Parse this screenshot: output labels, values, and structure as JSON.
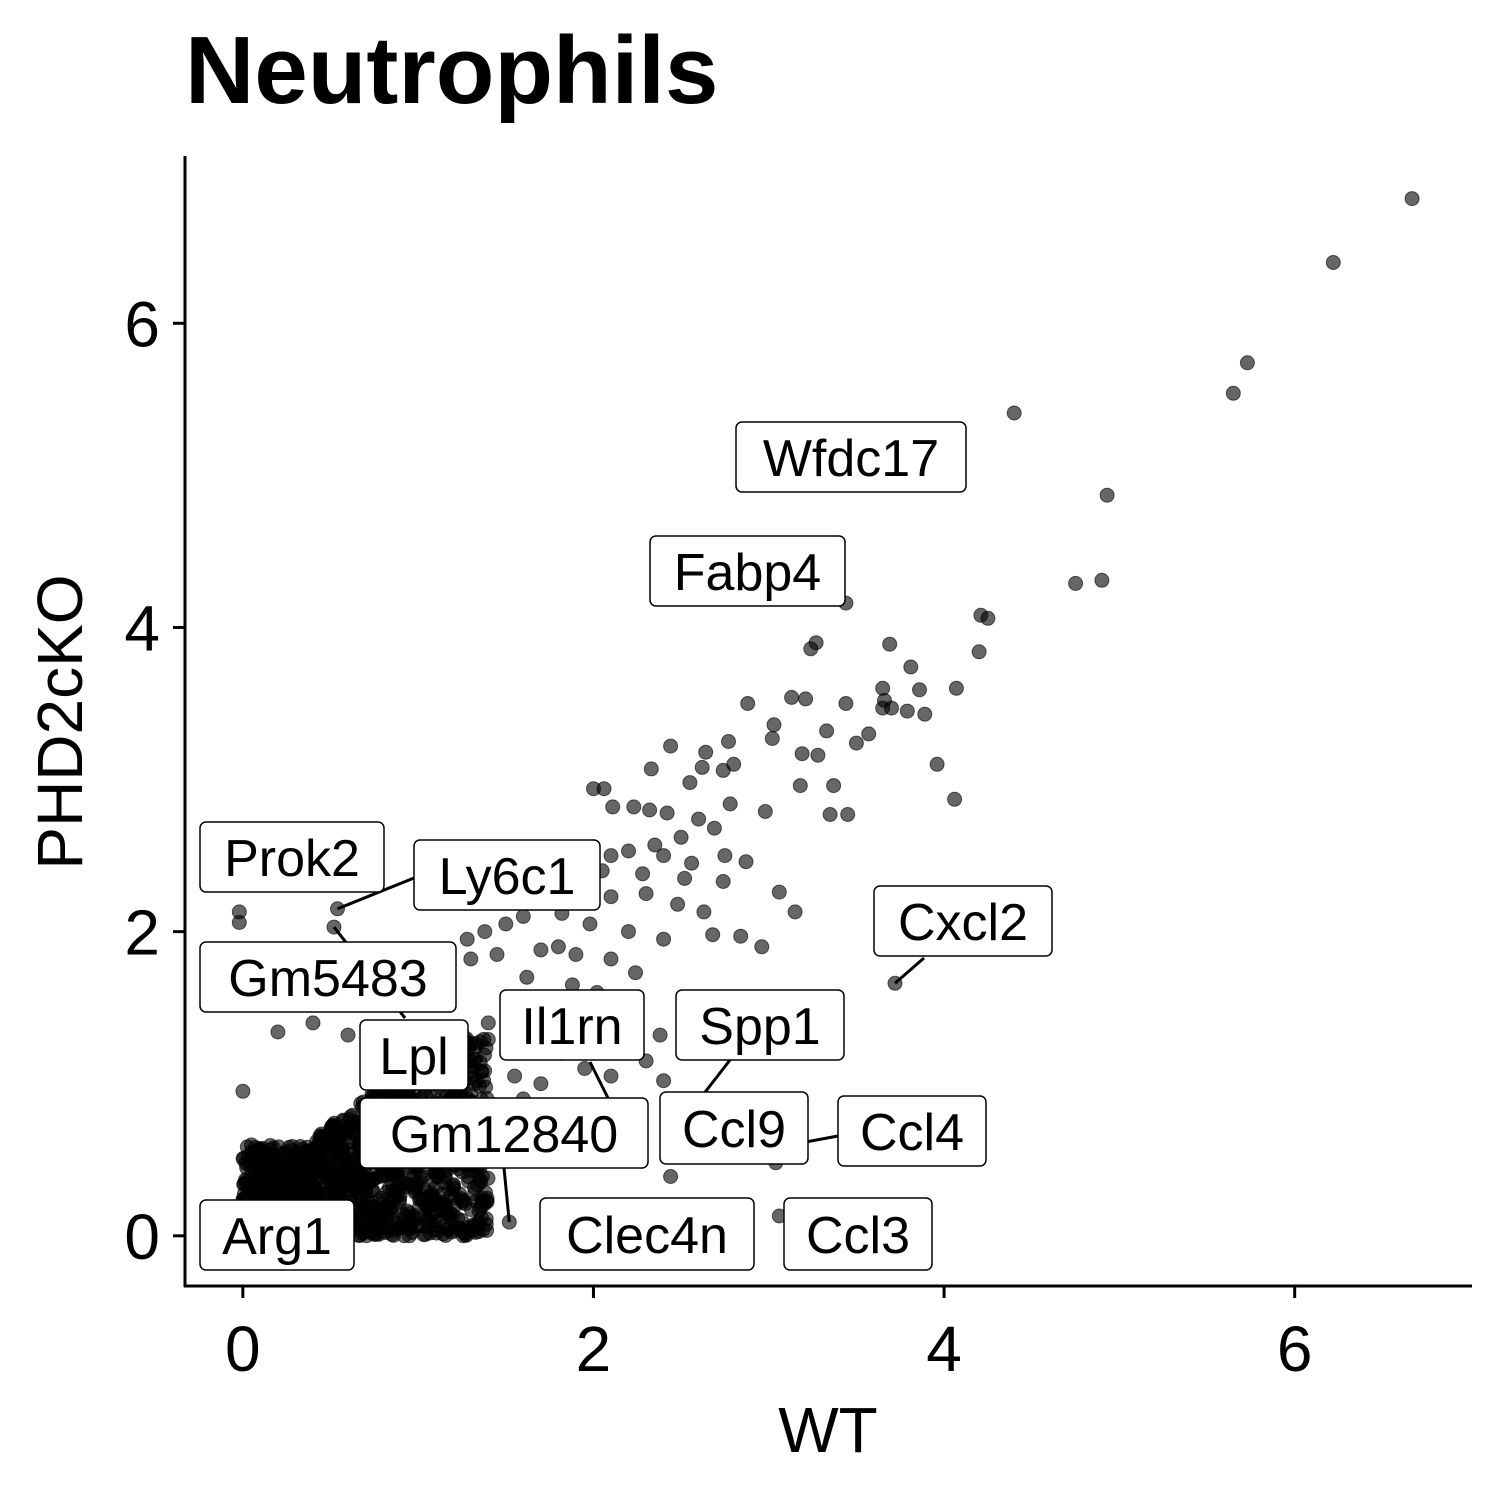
{
  "chart_data": {
    "type": "scatter",
    "title": "Neutrophils",
    "xlabel": "WT",
    "ylabel": "PHD2cKO",
    "xlim": [
      -0.33,
      7.0
    ],
    "ylim": [
      -0.33,
      7.1
    ],
    "xticks": [
      0,
      2,
      4,
      6
    ],
    "yticks": [
      0,
      2,
      4,
      6
    ],
    "xtick_labels": [
      "0",
      "2",
      "4",
      "6"
    ],
    "ytick_labels": [
      "0",
      "2",
      "4",
      "6"
    ],
    "grid": false,
    "point_color": "#000000",
    "point_opacity": 0.6,
    "dense_cluster": {
      "x_range": [
        0.0,
        1.4
      ],
      "y_range": [
        0.0,
        1.3
      ]
    },
    "points": [
      {
        "x": 6.67,
        "y": 6.82
      },
      {
        "x": 6.22,
        "y": 6.4
      },
      {
        "x": 5.73,
        "y": 5.74
      },
      {
        "x": 5.65,
        "y": 5.54
      },
      {
        "x": 4.4,
        "y": 5.41
      },
      {
        "x": 4.93,
        "y": 4.87
      },
      {
        "x": 4.9,
        "y": 4.31
      },
      {
        "x": 4.75,
        "y": 4.29
      },
      {
        "x": 4.25,
        "y": 4.06
      },
      {
        "x": 4.21,
        "y": 4.08
      },
      {
        "x": 3.44,
        "y": 4.16
      },
      {
        "x": 3.69,
        "y": 3.89
      },
      {
        "x": 4.2,
        "y": 3.84
      },
      {
        "x": 3.27,
        "y": 3.9
      },
      {
        "x": 3.24,
        "y": 3.86
      },
      {
        "x": 3.81,
        "y": 3.74
      },
      {
        "x": 3.65,
        "y": 3.6
      },
      {
        "x": 3.86,
        "y": 3.59
      },
      {
        "x": 4.07,
        "y": 3.6
      },
      {
        "x": 3.66,
        "y": 3.52
      },
      {
        "x": 3.65,
        "y": 3.47
      },
      {
        "x": 3.44,
        "y": 3.5
      },
      {
        "x": 3.79,
        "y": 3.45
      },
      {
        "x": 3.89,
        "y": 3.43
      },
      {
        "x": 3.7,
        "y": 3.47
      },
      {
        "x": 3.13,
        "y": 3.54
      },
      {
        "x": 3.21,
        "y": 3.53
      },
      {
        "x": 2.88,
        "y": 3.5
      },
      {
        "x": 3.03,
        "y": 3.36
      },
      {
        "x": 3.02,
        "y": 3.27
      },
      {
        "x": 2.77,
        "y": 3.25
      },
      {
        "x": 3.33,
        "y": 3.32
      },
      {
        "x": 3.57,
        "y": 3.3
      },
      {
        "x": 3.5,
        "y": 3.24
      },
      {
        "x": 2.44,
        "y": 3.22
      },
      {
        "x": 2.64,
        "y": 3.18
      },
      {
        "x": 3.19,
        "y": 3.17
      },
      {
        "x": 3.28,
        "y": 3.16
      },
      {
        "x": 2.8,
        "y": 3.1
      },
      {
        "x": 2.74,
        "y": 3.06
      },
      {
        "x": 2.62,
        "y": 3.08
      },
      {
        "x": 2.55,
        "y": 2.98
      },
      {
        "x": 2.33,
        "y": 3.07
      },
      {
        "x": 3.37,
        "y": 2.96
      },
      {
        "x": 3.18,
        "y": 2.96
      },
      {
        "x": 2.0,
        "y": 2.94
      },
      {
        "x": 2.06,
        "y": 2.94
      },
      {
        "x": 2.32,
        "y": 2.8
      },
      {
        "x": 2.78,
        "y": 2.84
      },
      {
        "x": 2.98,
        "y": 2.79
      },
      {
        "x": 3.35,
        "y": 2.77
      },
      {
        "x": 3.45,
        "y": 2.77
      },
      {
        "x": 4.06,
        "y": 2.87
      },
      {
        "x": 3.96,
        "y": 3.1
      },
      {
        "x": 2.11,
        "y": 2.82
      },
      {
        "x": 2.23,
        "y": 2.82
      },
      {
        "x": 2.42,
        "y": 2.78
      },
      {
        "x": 2.6,
        "y": 2.74
      },
      {
        "x": 2.69,
        "y": 2.68
      },
      {
        "x": 2.5,
        "y": 2.62
      },
      {
        "x": 2.35,
        "y": 2.57
      },
      {
        "x": 2.2,
        "y": 2.53
      },
      {
        "x": 2.1,
        "y": 2.5
      },
      {
        "x": 2.4,
        "y": 2.5
      },
      {
        "x": 2.56,
        "y": 2.45
      },
      {
        "x": 2.75,
        "y": 2.5
      },
      {
        "x": 2.87,
        "y": 2.46
      },
      {
        "x": 2.52,
        "y": 2.35
      },
      {
        "x": 2.74,
        "y": 2.33
      },
      {
        "x": 2.28,
        "y": 2.38
      },
      {
        "x": 2.05,
        "y": 2.4
      },
      {
        "x": 1.95,
        "y": 2.33
      },
      {
        "x": 2.1,
        "y": 2.23
      },
      {
        "x": 2.3,
        "y": 2.25
      },
      {
        "x": 2.48,
        "y": 2.18
      },
      {
        "x": 2.63,
        "y": 2.13
      },
      {
        "x": 3.06,
        "y": 2.26
      },
      {
        "x": 3.15,
        "y": 2.13
      },
      {
        "x": 1.7,
        "y": 2.2
      },
      {
        "x": 1.82,
        "y": 2.12
      },
      {
        "x": 1.6,
        "y": 2.1
      },
      {
        "x": 1.5,
        "y": 2.05
      },
      {
        "x": 1.38,
        "y": 2.0
      },
      {
        "x": 1.98,
        "y": 2.05
      },
      {
        "x": 2.2,
        "y": 2.0
      },
      {
        "x": 2.4,
        "y": 1.95
      },
      {
        "x": 2.68,
        "y": 1.98
      },
      {
        "x": 2.84,
        "y": 1.97
      },
      {
        "x": 2.96,
        "y": 1.9
      },
      {
        "x": 1.7,
        "y": 1.88
      },
      {
        "x": 1.8,
        "y": 1.9
      },
      {
        "x": 1.9,
        "y": 1.85
      },
      {
        "x": 2.1,
        "y": 1.82
      },
      {
        "x": 1.45,
        "y": 1.85
      },
      {
        "x": 1.3,
        "y": 1.82
      },
      {
        "x": 1.28,
        "y": 1.95
      },
      {
        "x": 1.1,
        "y": 1.7
      },
      {
        "x": 1.62,
        "y": 1.7
      },
      {
        "x": 1.88,
        "y": 1.65
      },
      {
        "x": 2.02,
        "y": 1.6
      },
      {
        "x": 2.2,
        "y": 1.55
      },
      {
        "x": 1.55,
        "y": 1.55
      },
      {
        "x": 1.7,
        "y": 1.48
      },
      {
        "x": 1.9,
        "y": 1.45
      },
      {
        "x": 2.05,
        "y": 1.35
      },
      {
        "x": 2.22,
        "y": 1.38
      },
      {
        "x": 2.38,
        "y": 1.32
      },
      {
        "x": 2.52,
        "y": 1.42
      },
      {
        "x": 1.4,
        "y": 1.4
      },
      {
        "x": 1.52,
        "y": 1.3
      },
      {
        "x": 1.68,
        "y": 1.25
      },
      {
        "x": 1.82,
        "y": 1.2
      },
      {
        "x": 1.95,
        "y": 1.1
      },
      {
        "x": 2.1,
        "y": 1.05
      },
      {
        "x": 2.3,
        "y": 1.15
      },
      {
        "x": 2.4,
        "y": 1.02
      },
      {
        "x": 1.55,
        "y": 1.05
      },
      {
        "x": 1.7,
        "y": 1.0
      },
      {
        "x": 1.6,
        "y": 0.9
      },
      {
        "x": 1.8,
        "y": 0.85
      },
      {
        "x": 1.5,
        "y": 0.8
      },
      {
        "x": 1.42,
        "y": 0.7
      },
      {
        "x": 1.62,
        "y": 0.62
      },
      {
        "x": 1.3,
        "y": 0.6
      },
      {
        "x": 1.25,
        "y": 0.42
      },
      {
        "x": 1.5,
        "y": 0.52
      },
      {
        "x": 0.54,
        "y": 2.15
      },
      {
        "x": 0.52,
        "y": 2.03
      },
      {
        "x": -0.02,
        "y": 2.13
      },
      {
        "x": -0.02,
        "y": 2.06
      },
      {
        "x": 3.72,
        "y": 1.66
      },
      {
        "x": 2.12,
        "y": 0.82
      },
      {
        "x": 2.58,
        "y": 0.86
      },
      {
        "x": 3.18,
        "y": 0.61
      },
      {
        "x": 3.04,
        "y": 0.48
      },
      {
        "x": 3.06,
        "y": 0.13
      },
      {
        "x": 2.44,
        "y": 0.39
      },
      {
        "x": 1.52,
        "y": 0.09
      },
      {
        "x": 1.37,
        "y": 0.04
      },
      {
        "x": 1.25,
        "y": 0.03
      },
      {
        "x": 1.1,
        "y": 0.04
      },
      {
        "x": 0.95,
        "y": 0.0
      },
      {
        "x": 0.85,
        "y": 0.01
      },
      {
        "x": 0.75,
        "y": 0.02
      },
      {
        "x": 0.0,
        "y": 0.95
      },
      {
        "x": 0.05,
        "y": 0.55
      },
      {
        "x": 0.2,
        "y": 1.34
      },
      {
        "x": 0.4,
        "y": 1.4
      },
      {
        "x": 0.6,
        "y": 1.32
      },
      {
        "x": 2.24,
        "y": 1.73
      },
      {
        "x": 1.22,
        "y": 0.93
      },
      {
        "x": 0.92,
        "y": 0.06
      }
    ],
    "annotations": [
      {
        "label": "Wfdc17",
        "x": 3.13,
        "y": 4.8
      },
      {
        "label": "Fabp4",
        "x": 2.53,
        "y": 4.05
      },
      {
        "label": "Prok2",
        "x": 0.54,
        "y": 2.15
      },
      {
        "label": "Ly6c1",
        "x": 0.54,
        "y": 2.15
      },
      {
        "label": "Gm5483",
        "x": 0.52,
        "y": 2.03
      },
      {
        "label": "Lpl",
        "x": 1.0,
        "y": 1.45
      },
      {
        "label": "Il1rn",
        "x": 2.12,
        "y": 0.82
      },
      {
        "label": "Spp1",
        "x": 2.58,
        "y": 0.86
      },
      {
        "label": "Cxcl2",
        "x": 3.72,
        "y": 1.66
      },
      {
        "label": "Gm12840",
        "x": 1.52,
        "y": 0.09
      },
      {
        "label": "Ccl9",
        "x": 3.04,
        "y": 0.48
      },
      {
        "label": "Ccl4",
        "x": 3.18,
        "y": 0.61
      },
      {
        "label": "Arg1",
        "x": 1.37,
        "y": 0.04
      },
      {
        "label": "Clec4n",
        "x": 2.44,
        "y": 0.39
      },
      {
        "label": "Ccl3",
        "x": 3.06,
        "y": 0.13
      }
    ]
  }
}
